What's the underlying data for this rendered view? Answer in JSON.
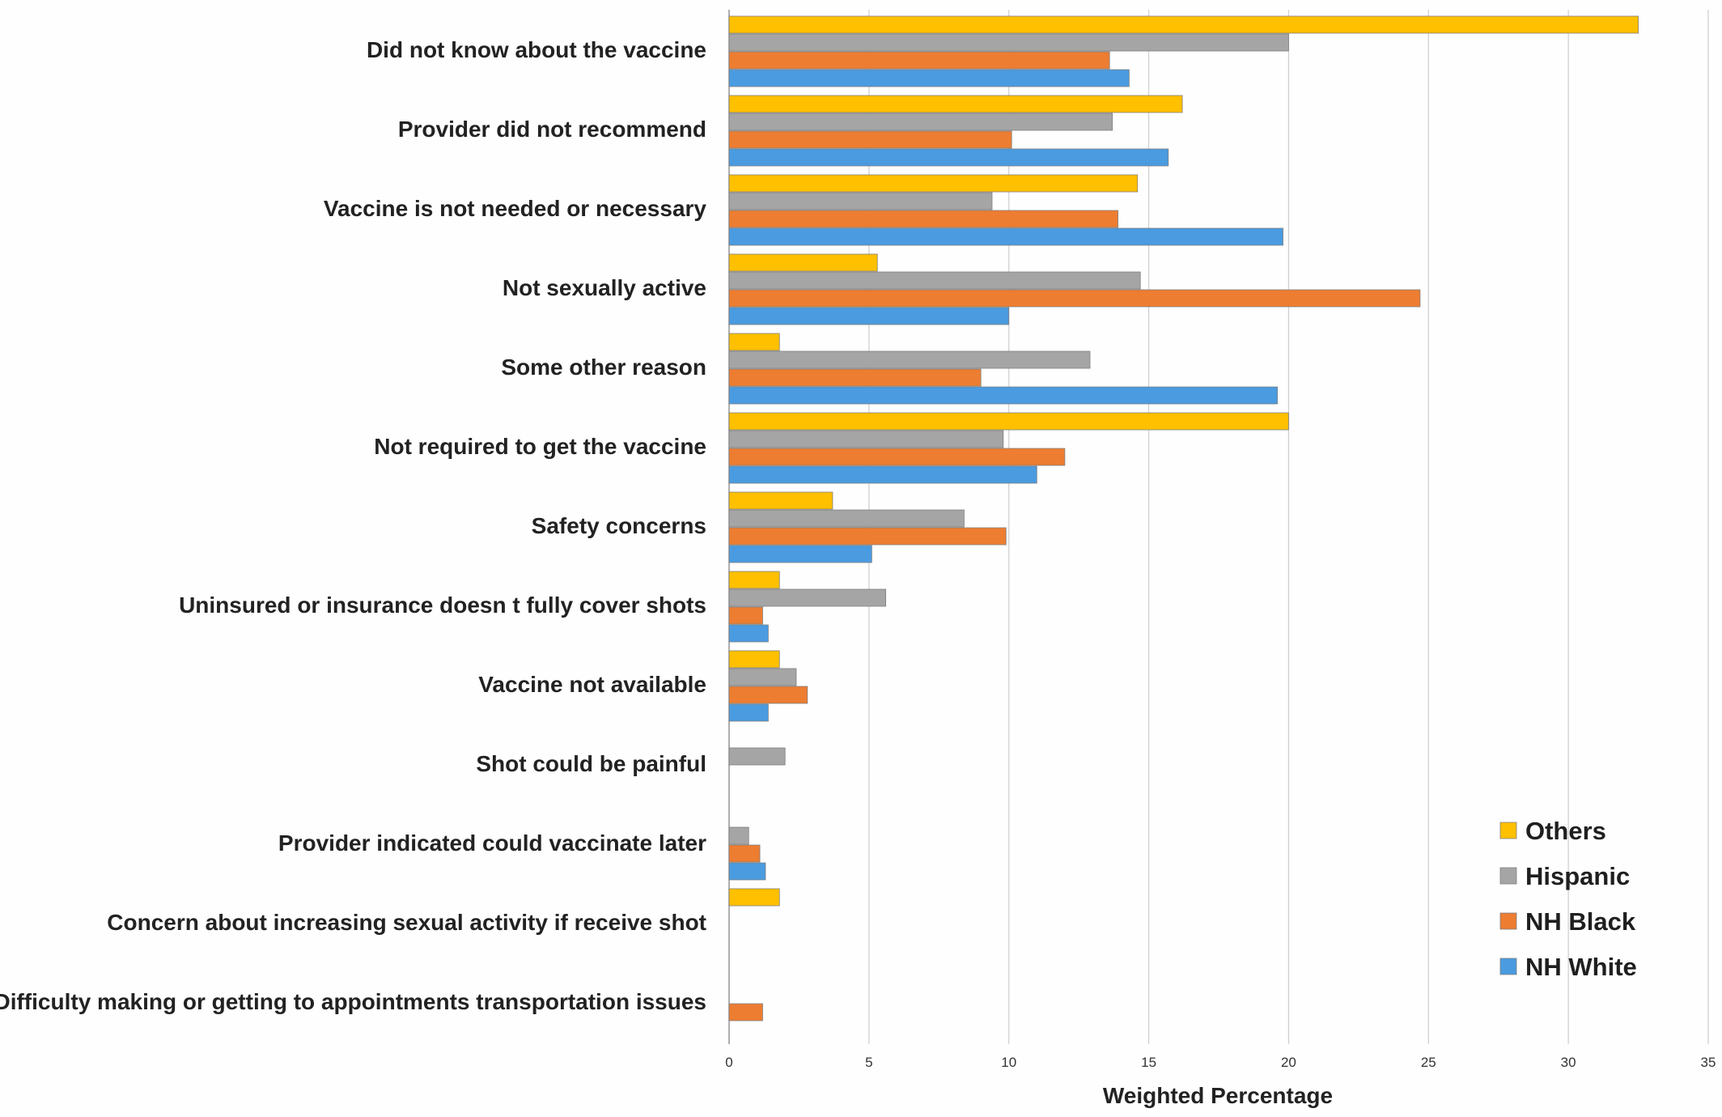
{
  "chart_data": {
    "type": "bar",
    "orientation": "horizontal",
    "title": "",
    "xlabel": "Weighted Percentage",
    "ylabel": "",
    "xlim": [
      0,
      35
    ],
    "xticks": [
      0,
      5,
      10,
      15,
      20,
      25,
      30,
      35
    ],
    "grid": "vertical",
    "legend_position": "bottom-right",
    "categories": [
      "Did not know about the vaccine",
      "Provider did not recommend",
      "Vaccine is not needed or necessary",
      "Not sexually active",
      "Some other reason",
      "Not required to get the vaccine",
      "Safety concerns",
      "Uninsured or insurance doesn t fully cover shots",
      "Vaccine not available",
      "Shot could be painful",
      "Provider indicated could vaccinate later",
      "Concern about increasing sexual activity if receive shot",
      "Difficulty making or getting to appointments transportation issues"
    ],
    "series": [
      {
        "name": "Others",
        "color": "#FFC000",
        "values": [
          32.5,
          16.2,
          14.6,
          5.3,
          1.8,
          20.0,
          3.7,
          1.8,
          1.8,
          0,
          0,
          1.8,
          0
        ]
      },
      {
        "name": "Hispanic",
        "color": "#A5A5A5",
        "values": [
          20.0,
          13.7,
          9.4,
          14.7,
          12.9,
          9.8,
          8.4,
          5.6,
          2.4,
          2.0,
          0.7,
          0,
          0
        ]
      },
      {
        "name": "NH Black",
        "color": "#ED7D31",
        "values": [
          13.6,
          10.1,
          13.9,
          24.7,
          9.0,
          12.0,
          9.9,
          1.2,
          2.8,
          0,
          1.1,
          0,
          1.2
        ]
      },
      {
        "name": "NH White",
        "color": "#4A9BE0",
        "values": [
          14.3,
          15.7,
          19.8,
          10.0,
          19.6,
          11.0,
          5.1,
          1.4,
          1.4,
          0,
          1.3,
          0,
          0
        ]
      }
    ]
  }
}
